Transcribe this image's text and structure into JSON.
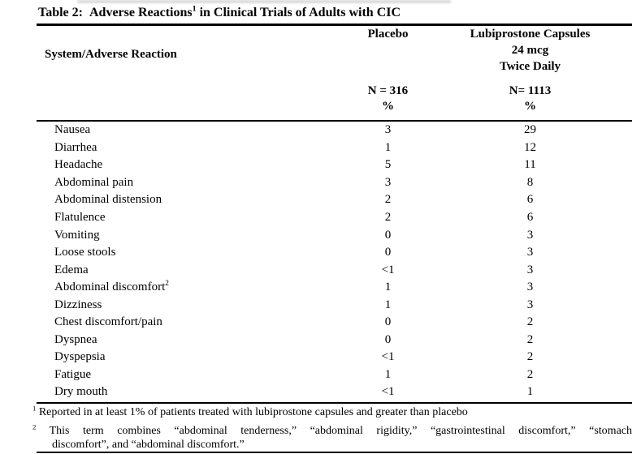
{
  "table": {
    "title": {
      "prefix": "Table 2:",
      "before_sup": "Adverse Reactions",
      "sup": "1",
      "after_sup": " in Clinical Trials of Adults with CIC"
    },
    "header": {
      "system_col": "System/Adverse Reaction",
      "placebo": {
        "name": "Placebo",
        "n": "N = 316",
        "pct": "%"
      },
      "lubiprostone": {
        "line1": "Lubiprostone Capsules",
        "line2": "24 mcg",
        "line3": "Twice Daily",
        "n": "N= 1113",
        "pct": "%"
      }
    },
    "rows": [
      {
        "label": "Nausea",
        "placebo": "3",
        "lubiprostone": "29"
      },
      {
        "label": "Diarrhea",
        "placebo": "1",
        "lubiprostone": "12"
      },
      {
        "label": "Headache",
        "placebo": "5",
        "lubiprostone": "11"
      },
      {
        "label": "Abdominal pain",
        "placebo": "3",
        "lubiprostone": "8"
      },
      {
        "label": "Abdominal distension",
        "placebo": "2",
        "lubiprostone": "6"
      },
      {
        "label": "Flatulence",
        "placebo": "2",
        "lubiprostone": "6"
      },
      {
        "label": "Vomiting",
        "placebo": "0",
        "lubiprostone": "3"
      },
      {
        "label": "Loose stools",
        "placebo": "0",
        "lubiprostone": "3"
      },
      {
        "label": "Edema",
        "placebo": "<1",
        "lubiprostone": "3"
      },
      {
        "label": "Abdominal discomfort",
        "sup": "2",
        "placebo": "1",
        "lubiprostone": "3"
      },
      {
        "label": "Dizziness",
        "placebo": "1",
        "lubiprostone": "3"
      },
      {
        "label": "Chest discomfort/pain",
        "placebo": "0",
        "lubiprostone": "2"
      },
      {
        "label": "Dyspnea",
        "placebo": "0",
        "lubiprostone": "2"
      },
      {
        "label": "Dyspepsia",
        "placebo": "<1",
        "lubiprostone": "2"
      },
      {
        "label": "Fatigue",
        "placebo": "1",
        "lubiprostone": "2"
      },
      {
        "label": "Dry mouth",
        "placebo": "<1",
        "lubiprostone": "1"
      }
    ],
    "footnotes": {
      "fn1": {
        "sup": "1",
        "text": " Reported in at least 1% of patients treated with lubiprostone capsules and greater than placebo"
      },
      "fn2": {
        "sup": "2",
        "line1": " This term combines “abdominal tenderness,” “abdominal rigidity,” “gastrointestinal discomfort,” “stomach",
        "line2": "discomfort”, and “abdominal discomfort.”"
      }
    }
  },
  "colors": {
    "text": "#000000",
    "background": "#ffffff",
    "rule": "#000000"
  }
}
